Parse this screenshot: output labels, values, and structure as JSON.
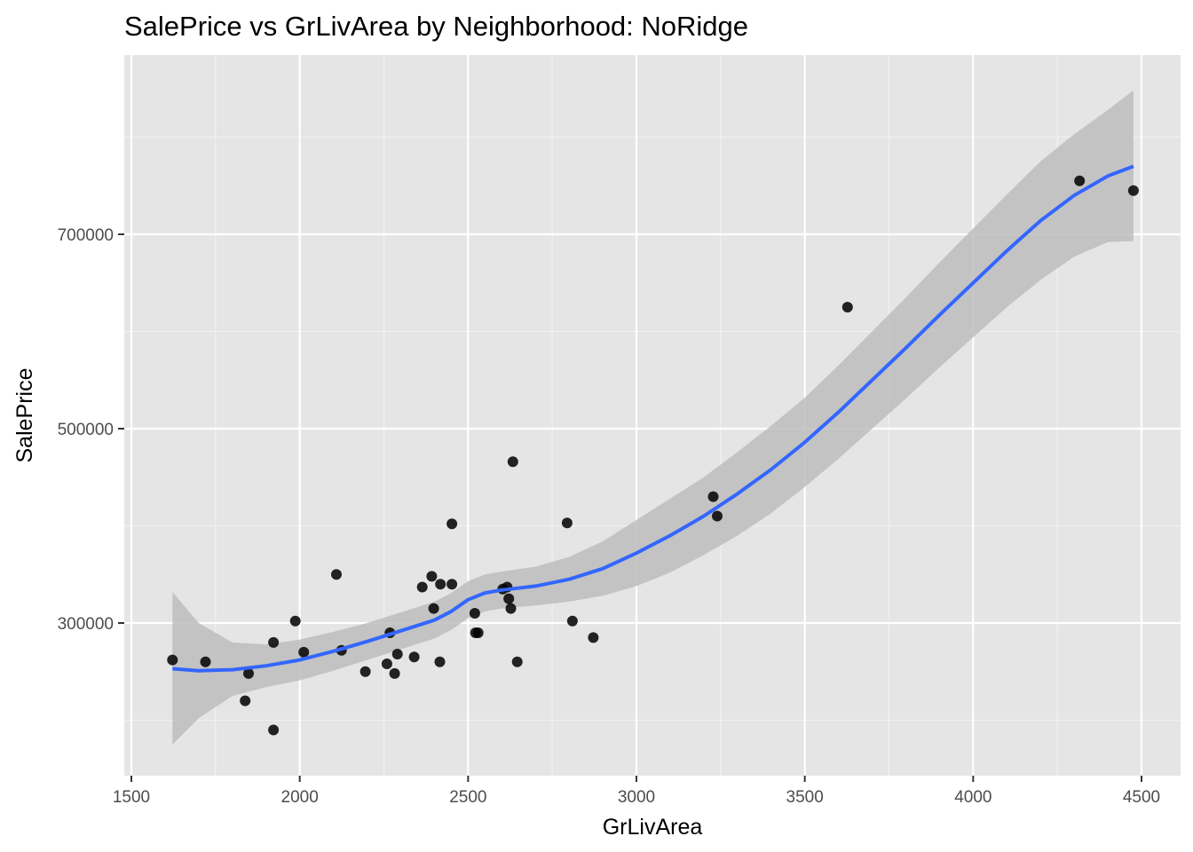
{
  "chart_data": {
    "type": "scatter",
    "title": "SalePrice vs GrLivArea by Neighborhood: NoRidge",
    "xlabel": "GrLivArea",
    "ylabel": "SalePrice",
    "xlim": [
      1600,
      4500
    ],
    "ylim": [
      170000,
      790000
    ],
    "x_ticks": [
      1500,
      2000,
      2500,
      3000,
      3500,
      4000,
      4500
    ],
    "x_tick_labels": [
      "1500",
      "2000",
      "2500",
      "3000",
      "3500",
      "4000",
      "4500"
    ],
    "y_ticks": [
      300000,
      500000,
      700000
    ],
    "y_tick_labels": [
      "300000",
      "500000",
      "700000"
    ],
    "grid": true,
    "legend": "none",
    "points": [
      {
        "x": 1622,
        "y": 262000
      },
      {
        "x": 1720,
        "y": 260000
      },
      {
        "x": 1838,
        "y": 220000
      },
      {
        "x": 1848,
        "y": 248000
      },
      {
        "x": 1922,
        "y": 280000
      },
      {
        "x": 1922,
        "y": 190000
      },
      {
        "x": 1987,
        "y": 302000
      },
      {
        "x": 2012,
        "y": 270000
      },
      {
        "x": 2109,
        "y": 350000
      },
      {
        "x": 2124,
        "y": 272000
      },
      {
        "x": 2195,
        "y": 250000
      },
      {
        "x": 2259,
        "y": 258000
      },
      {
        "x": 2268,
        "y": 290000
      },
      {
        "x": 2282,
        "y": 248000
      },
      {
        "x": 2290,
        "y": 268000
      },
      {
        "x": 2340,
        "y": 265000
      },
      {
        "x": 2364,
        "y": 337000
      },
      {
        "x": 2392,
        "y": 348000
      },
      {
        "x": 2398,
        "y": 315000
      },
      {
        "x": 2418,
        "y": 340000
      },
      {
        "x": 2416,
        "y": 260000
      },
      {
        "x": 2452,
        "y": 340000
      },
      {
        "x": 2452,
        "y": 402000
      },
      {
        "x": 2520,
        "y": 310000
      },
      {
        "x": 2522,
        "y": 290000
      },
      {
        "x": 2530,
        "y": 290000
      },
      {
        "x": 2603,
        "y": 335000
      },
      {
        "x": 2616,
        "y": 337000
      },
      {
        "x": 2621,
        "y": 325000
      },
      {
        "x": 2627,
        "y": 315000
      },
      {
        "x": 2633,
        "y": 466000
      },
      {
        "x": 2646,
        "y": 260000
      },
      {
        "x": 2794,
        "y": 403000
      },
      {
        "x": 2810,
        "y": 302000
      },
      {
        "x": 2872,
        "y": 285000
      },
      {
        "x": 3228,
        "y": 430000
      },
      {
        "x": 3240,
        "y": 410000
      },
      {
        "x": 3627,
        "y": 625000
      },
      {
        "x": 4316,
        "y": 755000
      },
      {
        "x": 4476,
        "y": 745000
      }
    ],
    "smooth_line": {
      "x": [
        1622,
        1700,
        1800,
        1900,
        2000,
        2100,
        2200,
        2300,
        2400,
        2450,
        2500,
        2550,
        2600,
        2700,
        2800,
        2900,
        3000,
        3100,
        3200,
        3300,
        3400,
        3500,
        3600,
        3700,
        3800,
        3900,
        4000,
        4100,
        4200,
        4300,
        4400,
        4476
      ],
      "y": [
        253000,
        251000,
        252000,
        256000,
        262000,
        271000,
        281000,
        292000,
        303000,
        312000,
        324000,
        331000,
        334000,
        338000,
        345000,
        356000,
        372000,
        390000,
        410000,
        433000,
        458000,
        486000,
        517000,
        550000,
        583000,
        617000,
        650000,
        683000,
        714000,
        740000,
        760000,
        770000
      ],
      "lower": [
        175000,
        202000,
        225000,
        234000,
        241000,
        251000,
        262000,
        273000,
        284000,
        293000,
        305000,
        312000,
        315000,
        318000,
        322000,
        328000,
        338000,
        352000,
        370000,
        390000,
        413000,
        440000,
        469000,
        500000,
        531000,
        563000,
        594000,
        625000,
        653000,
        677000,
        692000,
        693000
      ],
      "upper": [
        332000,
        300000,
        280000,
        278000,
        283000,
        291000,
        300000,
        311000,
        322000,
        331000,
        343000,
        350000,
        353000,
        358000,
        368000,
        384000,
        406000,
        428000,
        450000,
        476000,
        503000,
        532000,
        565000,
        600000,
        635000,
        671000,
        706000,
        741000,
        775000,
        803000,
        828000,
        848000
      ]
    },
    "colors": {
      "panel": "#e5e5e5",
      "grid_major": "#ffffff",
      "grid_minor": "#f2f2f2",
      "point": "#000000",
      "line": "#3366ff",
      "ribbon": "#bdbdbd"
    }
  }
}
